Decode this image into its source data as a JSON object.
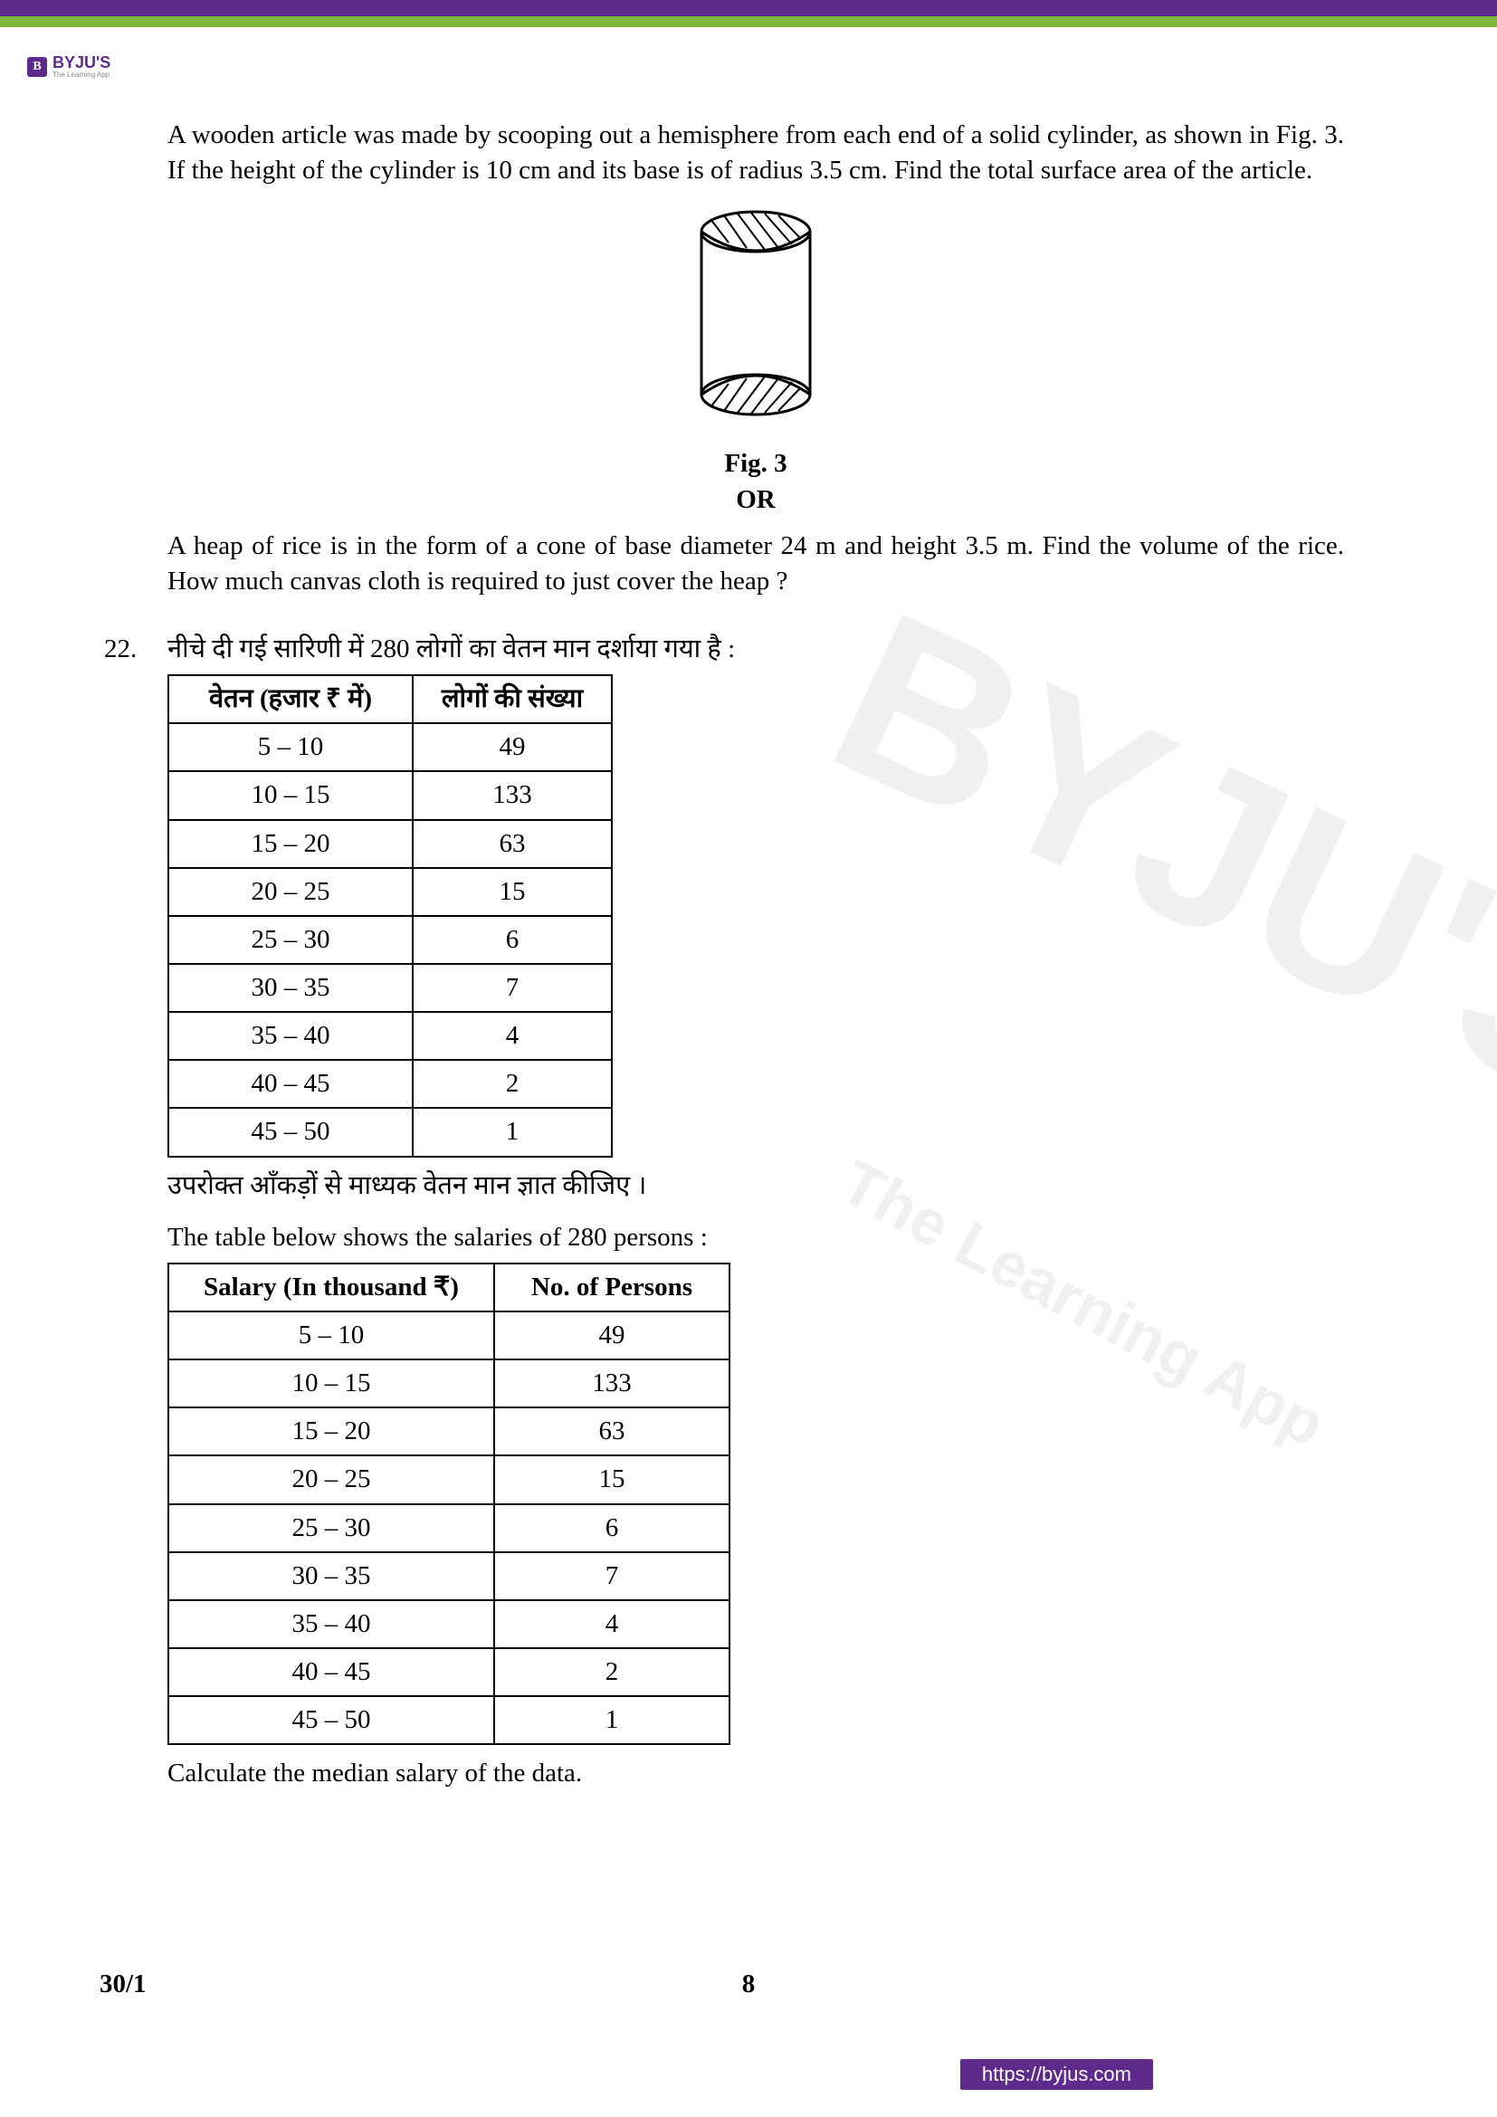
{
  "branding": {
    "logo_letter": "B",
    "logo_name": "BYJU'S",
    "logo_tagline": "The Learning App"
  },
  "question21": {
    "text_en_part1": "A wooden article was made by scooping out a hemisphere from each end of a solid cylinder, as shown in Fig. 3. If the height of the cylinder is 10 cm and its base is of radius 3.5 cm. Find the total surface area of the article.",
    "fig_label": "Fig. 3",
    "or_label": "OR",
    "text_en_or": "A heap of rice is in the form of a cone of base diameter 24 m and height 3.5 m. Find the volume of the rice. How much canvas cloth is required to just cover the heap ?"
  },
  "question22": {
    "number": "22.",
    "intro_hi": "नीचे दी गई सारिणी में 280 लोगों का वेतन मान दर्शाया गया है :",
    "table_hi": {
      "headers": [
        "वेतन (हजार ₹ में)",
        "लोगों की संख्या"
      ],
      "rows": [
        [
          "5 – 10",
          "49"
        ],
        [
          "10 – 15",
          "133"
        ],
        [
          "15 – 20",
          "63"
        ],
        [
          "20 – 25",
          "15"
        ],
        [
          "25 – 30",
          "6"
        ],
        [
          "30 – 35",
          "7"
        ],
        [
          "35 – 40",
          "4"
        ],
        [
          "40 – 45",
          "2"
        ],
        [
          "45 – 50",
          "1"
        ]
      ]
    },
    "conclusion_hi": "उपरोक्त आँकड़ों से माध्यक वेतन मान ज्ञात कीजिए ।",
    "intro_en": "The table below shows the salaries of 280 persons :",
    "table_en": {
      "headers": [
        "Salary (In thousand ₹)",
        "No. of Persons"
      ],
      "rows": [
        [
          "5 – 10",
          "49"
        ],
        [
          "10 – 15",
          "133"
        ],
        [
          "15 – 20",
          "63"
        ],
        [
          "20 – 25",
          "15"
        ],
        [
          "25 – 30",
          "6"
        ],
        [
          "30 – 35",
          "7"
        ],
        [
          "35 – 40",
          "4"
        ],
        [
          "40 – 45",
          "2"
        ],
        [
          "45 – 50",
          "1"
        ]
      ]
    },
    "conclusion_en": "Calculate the median salary of the data."
  },
  "footer": {
    "code": "30/1",
    "page": "8",
    "url": "https://byjus.com"
  },
  "watermark": {
    "big": "BYJU'S",
    "small": "The Learning App"
  },
  "colors": {
    "purple": "#5e2b8c",
    "green": "#7fba3d"
  }
}
